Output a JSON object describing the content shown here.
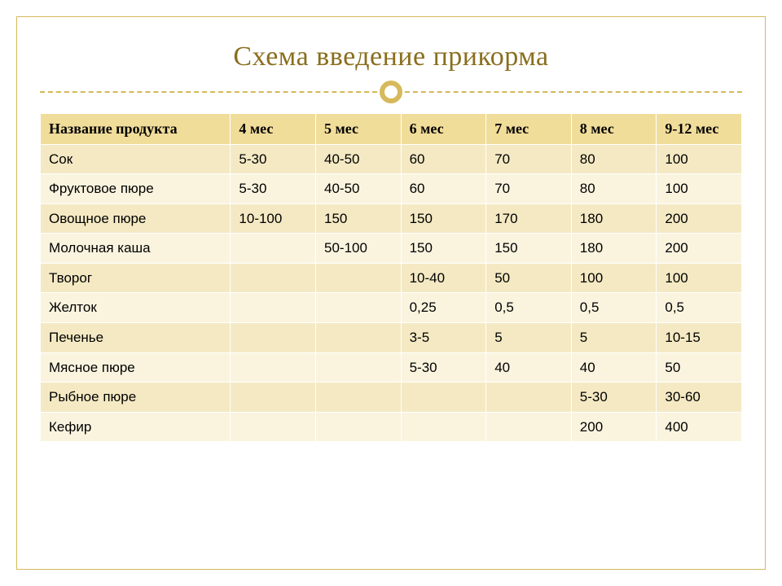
{
  "slide": {
    "title": "Схема введение прикорма",
    "title_color": "#8a6e1e",
    "accent_color": "#d6b95a",
    "background": "#ffffff"
  },
  "table": {
    "type": "table",
    "header_bg": "#f1dd9a",
    "row_bg_a": "#f4e9c3",
    "row_bg_b": "#faf4df",
    "border_color": "#ffffff",
    "text_color": "#000000",
    "columns": [
      "Название продукта",
      "4 мес",
      "5 мес",
      "6 мес",
      "7 мес",
      "8 мес",
      "9-12 мес"
    ],
    "rows": [
      {
        "name": "Сок",
        "cells": [
          "5-30",
          "40-50",
          "60",
          "70",
          "80",
          "100"
        ]
      },
      {
        "name": "Фруктовое пюре",
        "cells": [
          "5-30",
          "40-50",
          "60",
          "70",
          "80",
          "100"
        ]
      },
      {
        "name": "Овощное пюре",
        "cells": [
          "10-100",
          "150",
          "150",
          "170",
          "180",
          "200"
        ]
      },
      {
        "name": "Молочная каша",
        "cells": [
          "",
          "50-100",
          "150",
          "150",
          "180",
          "200"
        ]
      },
      {
        "name": "Творог",
        "cells": [
          "",
          "",
          "10-40",
          "50",
          "100",
          "100"
        ]
      },
      {
        "name": "Желток",
        "cells": [
          "",
          "",
          "0,25",
          "0,5",
          "0,5",
          "0,5"
        ]
      },
      {
        "name": "Печенье",
        "cells": [
          "",
          "",
          "3-5",
          "5",
          "5",
          "10-15"
        ]
      },
      {
        "name": "Мясное пюре",
        "cells": [
          "",
          "",
          "5-30",
          "40",
          "40",
          "50"
        ]
      },
      {
        "name": "Рыбное пюре",
        "cells": [
          "",
          "",
          "",
          "",
          "5-30",
          "30-60"
        ]
      },
      {
        "name": "Кефир",
        "cells": [
          "",
          "",
          "",
          "",
          "200",
          "400"
        ]
      }
    ]
  }
}
